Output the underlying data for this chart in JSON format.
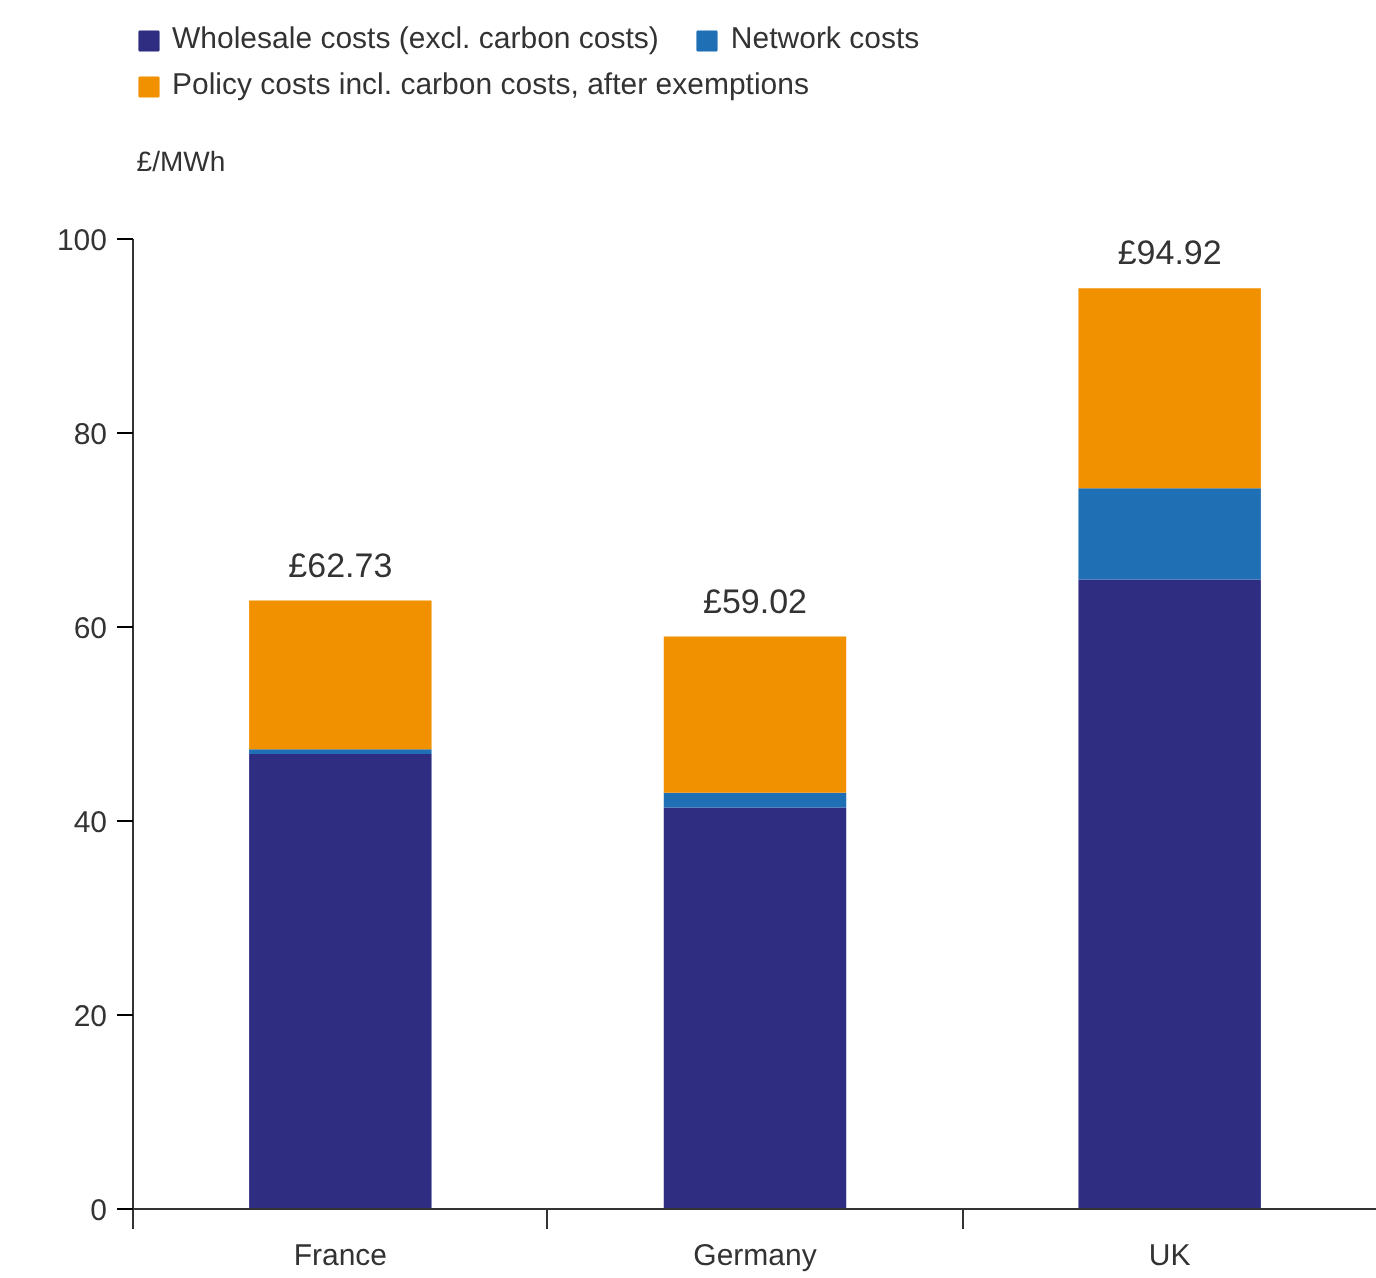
{
  "chart_data": {
    "type": "bar",
    "stacked": true,
    "ylabel": "£/MWh",
    "categories": [
      "France",
      "Germany",
      "UK"
    ],
    "series": [
      {
        "name": "Wholesale costs (excl. carbon costs)",
        "color": "#2e2d82",
        "values": [
          46.9,
          41.4,
          64.9
        ]
      },
      {
        "name": "Network costs",
        "color": "#1f6fb5",
        "values": [
          0.5,
          1.5,
          9.4
        ]
      },
      {
        "name": "Policy costs incl. carbon costs, after exemptions",
        "color": "#f29100",
        "values": [
          15.33,
          16.12,
          20.62
        ]
      }
    ],
    "totals": [
      "£62.73",
      "£59.02",
      "£94.92"
    ],
    "ylim": [
      0,
      100
    ],
    "yticks": [
      0,
      20,
      40,
      60,
      80,
      100
    ],
    "grid": false,
    "legend": "top left"
  }
}
